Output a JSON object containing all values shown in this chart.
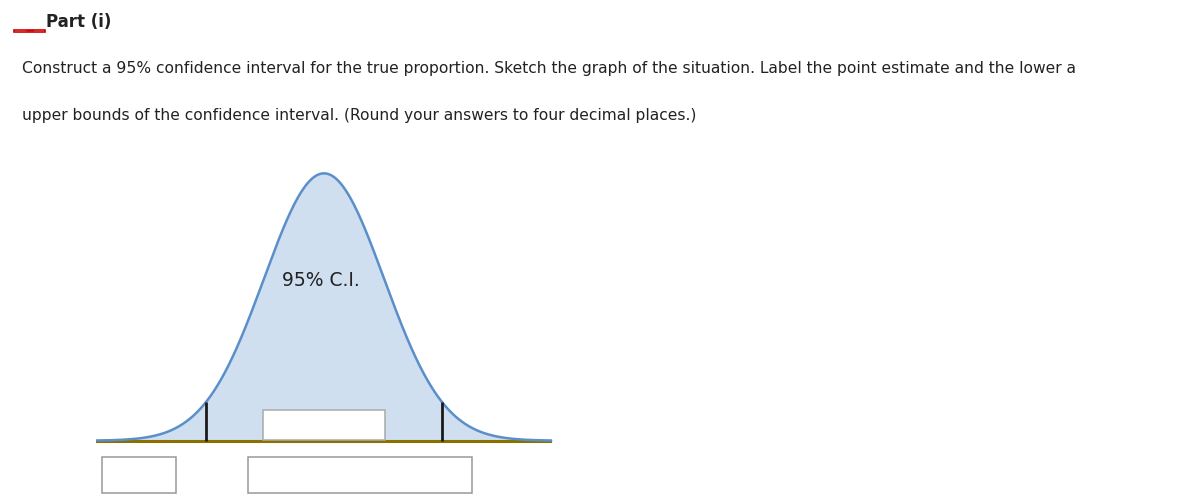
{
  "description_line1": "Construct a 95% confidence interval for the true proportion. Sketch the graph of the situation. Label the point estimate and the lower a",
  "description_line2": "upper bounds of the confidence interval. (Round your answers to four decimal places.)",
  "ci_label": "95% C.I.",
  "curve_mean": 0.0,
  "curve_std": 1.0,
  "ci_lower": -1.96,
  "ci_upper": 1.96,
  "x_min": -3.8,
  "x_max": 3.8,
  "curve_color": "#5b8fc9",
  "fill_color": "#cfdff0",
  "fill_alpha": 1.0,
  "line_color": "#1a1a1a",
  "bg_color": "#ffffff",
  "header_bg": "#dde3ea",
  "box_bg": "#ffffff",
  "box_edge": "#999999",
  "title_color": "#cc0000",
  "text_color": "#222222",
  "baseline_color": "#8B7000"
}
